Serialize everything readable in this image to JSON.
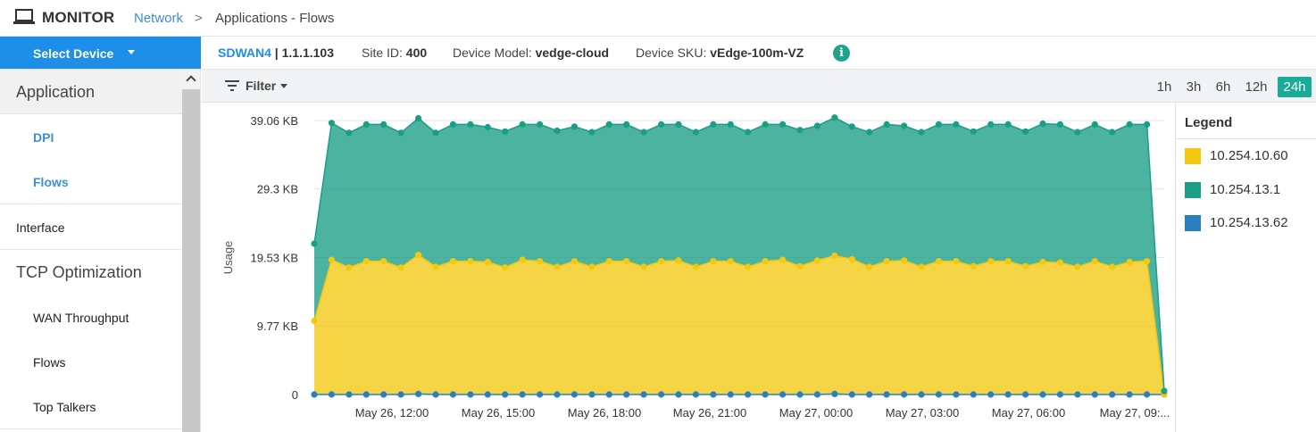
{
  "header": {
    "title": "MONITOR",
    "breadcrumb_link": "Network",
    "breadcrumb_sep": ">",
    "breadcrumb_current": "Applications - Flows"
  },
  "device_bar": {
    "select_label": "Select Device",
    "device_name": "SDWAN4",
    "device_ip": "| 1.1.1.103",
    "site_label": "Site ID:",
    "site_value": "400",
    "model_label": "Device Model:",
    "model_value": "vedge-cloud",
    "sku_label": "Device SKU:",
    "sku_value": "vEdge-100m-VZ",
    "info_glyph": "i"
  },
  "sidebar": {
    "items": [
      {
        "label": "Application"
      },
      {
        "label": "DPI"
      },
      {
        "label": "Flows"
      },
      {
        "label": "Interface"
      },
      {
        "label": "TCP Optimization"
      },
      {
        "label": "WAN Throughput"
      },
      {
        "label": "Flows"
      },
      {
        "label": "Top Talkers"
      }
    ]
  },
  "filter_bar": {
    "filter_label": "Filter",
    "ranges": [
      "1h",
      "3h",
      "6h",
      "12h",
      "24h"
    ],
    "active_range": "24h"
  },
  "legend": {
    "title": "Legend",
    "items": [
      {
        "label": "10.254.10.60",
        "color": "#f2c811"
      },
      {
        "label": "10.254.13.1",
        "color": "#1a9e85"
      },
      {
        "label": "10.254.13.62",
        "color": "#2a7fc0"
      }
    ]
  },
  "chart_data": {
    "type": "area",
    "stacked": true,
    "ylabel": "Usage",
    "y_ticks": [
      "0",
      "9.77 KB",
      "19.53 KB",
      "29.3 KB",
      "39.06 KB"
    ],
    "y_tick_values": [
      0,
      9.77,
      19.53,
      29.3,
      39.06
    ],
    "ylim": [
      0,
      39.06
    ],
    "x_tick_labels": [
      "May 26, 12:00",
      "May 26, 15:00",
      "May 26, 18:00",
      "May 26, 21:00",
      "May 27, 00:00",
      "May 27, 03:00",
      "May 27, 06:00",
      "May 27, 09:..."
    ],
    "grid": true,
    "legend_position": "right",
    "series": [
      {
        "name": "10.254.13.62",
        "color": "#2a7fc0",
        "values": [
          0,
          0,
          0,
          0,
          0,
          0,
          0.08,
          0,
          0,
          0,
          0,
          0,
          0,
          0,
          0,
          0,
          0,
          0,
          0,
          0,
          0,
          0,
          0,
          0,
          0,
          0,
          0,
          0,
          0,
          0,
          0.08,
          0,
          0,
          0,
          0,
          0,
          0,
          0,
          0,
          0,
          0,
          0,
          0,
          0,
          0,
          0,
          0,
          0,
          0,
          0
        ]
      },
      {
        "name": "10.254.10.60",
        "color": "#f2c811",
        "values": [
          10.5,
          19.2,
          18.1,
          19.0,
          19.0,
          18.1,
          19.8,
          18.2,
          19.0,
          19.0,
          18.9,
          18.1,
          19.2,
          19.0,
          18.2,
          19.0,
          18.2,
          19.0,
          19.0,
          18.2,
          19.0,
          19.1,
          18.2,
          19.0,
          19.0,
          18.2,
          19.0,
          19.2,
          18.3,
          19.1,
          19.7,
          19.3,
          18.2,
          19.0,
          19.1,
          18.2,
          19.0,
          19.0,
          18.3,
          19.0,
          19.0,
          18.3,
          18.9,
          18.8,
          18.2,
          19.0,
          18.2,
          18.9,
          19.0,
          0
        ]
      },
      {
        "name": "10.254.13.1",
        "color": "#1a9e85",
        "values": [
          11.0,
          19.5,
          19.2,
          19.5,
          19.5,
          19.2,
          19.5,
          19.1,
          19.5,
          19.5,
          19.2,
          19.4,
          19.3,
          19.5,
          19.4,
          19.2,
          19.2,
          19.5,
          19.5,
          19.2,
          19.5,
          19.4,
          19.2,
          19.5,
          19.5,
          19.2,
          19.5,
          19.3,
          19.4,
          19.2,
          19.7,
          18.9,
          19.2,
          19.5,
          19.2,
          19.2,
          19.5,
          19.5,
          19.2,
          19.5,
          19.5,
          19.2,
          19.7,
          19.7,
          19.2,
          19.5,
          19.2,
          19.6,
          19.5,
          0.5
        ]
      }
    ]
  }
}
